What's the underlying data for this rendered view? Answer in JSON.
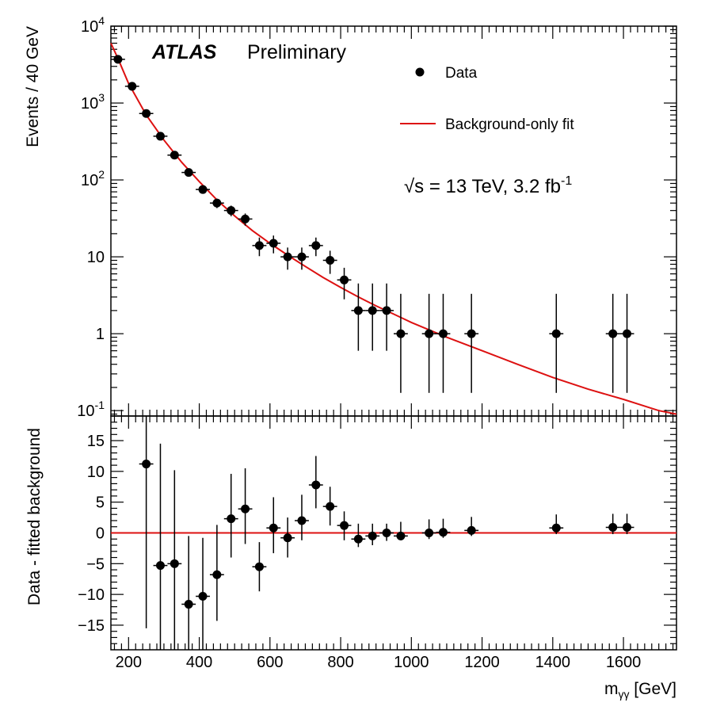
{
  "chart_data": [
    {
      "type": "scatter",
      "panel": "top",
      "scale": "log",
      "ylabel": "Events / 40 GeV",
      "ylim": [
        0.085,
        10000
      ],
      "xlim": [
        150,
        1750
      ],
      "y_tick_labels": [
        {
          "value": 10000,
          "base": "10",
          "exp": "4"
        },
        {
          "value": 1000,
          "base": "10",
          "exp": "3"
        },
        {
          "value": 100,
          "base": "10",
          "exp": "2"
        },
        {
          "value": 10,
          "base": "10",
          "exp": ""
        },
        {
          "value": 1,
          "base": "1",
          "exp": ""
        },
        {
          "value": 0.1,
          "base": "10",
          "exp": "-1"
        }
      ],
      "atlas_label": "ATLAS",
      "atlas_sublabel": "Preliminary",
      "energy_label": {
        "prefix": "√s = 13 TeV, 3.2 fb",
        "sup": "-1"
      },
      "legend": {
        "placement": "top-right",
        "data_label": "Data",
        "fit_label": "Background-only fit"
      },
      "fit_color": "#dd1111",
      "fit_curve_x": [
        150,
        170,
        200,
        250,
        300,
        350,
        400,
        450,
        500,
        550,
        600,
        650,
        700,
        750,
        800,
        850,
        900,
        950,
        1000,
        1100,
        1200,
        1300,
        1400,
        1500,
        1600,
        1700,
        1750
      ],
      "fit_curve_y": [
        6000,
        3800,
        1800,
        700,
        330,
        170,
        95,
        55,
        34,
        22,
        15,
        10.5,
        7.5,
        5.4,
        4.0,
        3.0,
        2.3,
        1.8,
        1.4,
        0.9,
        0.6,
        0.4,
        0.27,
        0.19,
        0.14,
        0.1,
        0.09
      ],
      "points": [
        {
          "x": 170,
          "y": 3700,
          "ylo": 3640,
          "yhi": 3760
        },
        {
          "x": 210,
          "y": 1650,
          "ylo": 1610,
          "yhi": 1690
        },
        {
          "x": 250,
          "y": 730,
          "ylo": 703,
          "yhi": 757
        },
        {
          "x": 290,
          "y": 370,
          "ylo": 351,
          "yhi": 389
        },
        {
          "x": 330,
          "y": 210,
          "ylo": 196,
          "yhi": 225
        },
        {
          "x": 370,
          "y": 125,
          "ylo": 114,
          "yhi": 136
        },
        {
          "x": 410,
          "y": 75,
          "ylo": 66.4,
          "yhi": 83.7
        },
        {
          "x": 450,
          "y": 50,
          "ylo": 43.0,
          "yhi": 57.1
        },
        {
          "x": 490,
          "y": 40,
          "ylo": 33.7,
          "yhi": 46.3
        },
        {
          "x": 530,
          "y": 31,
          "ylo": 25.4,
          "yhi": 36.6
        },
        {
          "x": 570,
          "y": 14,
          "ylo": 10.2,
          "yhi": 17.8
        },
        {
          "x": 610,
          "y": 15,
          "ylo": 11.1,
          "yhi": 18.9
        },
        {
          "x": 650,
          "y": 10,
          "ylo": 6.8,
          "yhi": 13.2
        },
        {
          "x": 690,
          "y": 10,
          "ylo": 6.8,
          "yhi": 13.2
        },
        {
          "x": 730,
          "y": 14,
          "ylo": 10.2,
          "yhi": 17.8
        },
        {
          "x": 770,
          "y": 9,
          "ylo": 6.0,
          "yhi": 12.0
        },
        {
          "x": 810,
          "y": 5,
          "ylo": 2.8,
          "yhi": 7.2
        },
        {
          "x": 850,
          "y": 2,
          "ylo": 0.6,
          "yhi": 4.5
        },
        {
          "x": 890,
          "y": 2,
          "ylo": 0.6,
          "yhi": 4.5
        },
        {
          "x": 930,
          "y": 2,
          "ylo": 0.6,
          "yhi": 4.5
        },
        {
          "x": 970,
          "y": 1,
          "ylo": 0.17,
          "yhi": 3.3
        },
        {
          "x": 1050,
          "y": 1,
          "ylo": 0.17,
          "yhi": 3.3
        },
        {
          "x": 1090,
          "y": 1,
          "ylo": 0.17,
          "yhi": 3.3
        },
        {
          "x": 1170,
          "y": 1,
          "ylo": 0.17,
          "yhi": 3.3
        },
        {
          "x": 1410,
          "y": 1,
          "ylo": 0.17,
          "yhi": 3.3
        },
        {
          "x": 1570,
          "y": 1,
          "ylo": 0.17,
          "yhi": 3.3
        },
        {
          "x": 1610,
          "y": 1,
          "ylo": 0.17,
          "yhi": 3.3
        }
      ]
    },
    {
      "type": "scatter",
      "panel": "bottom",
      "ylabel": "Data - fitted background",
      "xlabel": {
        "base": "m",
        "sub": "γγ",
        "unit": " [GeV]"
      },
      "ylim": [
        -19,
        19
      ],
      "xlim": [
        150,
        1750
      ],
      "y_ticks": [
        15,
        10,
        5,
        0,
        -5,
        -10,
        -15
      ],
      "x_ticks": [
        200,
        400,
        600,
        800,
        1000,
        1200,
        1400,
        1600
      ],
      "zero_line_color": "#dd1111",
      "points": [
        {
          "x": 250,
          "y": 11.2,
          "ylo": -15.5,
          "yhi": 19
        },
        {
          "x": 290,
          "y": -5.3,
          "ylo": -19,
          "yhi": 14.5
        },
        {
          "x": 330,
          "y": -5.0,
          "ylo": -19,
          "yhi": 10.2
        },
        {
          "x": 370,
          "y": -11.6,
          "ylo": -19,
          "yhi": -0.5
        },
        {
          "x": 410,
          "y": -10.3,
          "ylo": -19,
          "yhi": -0.8
        },
        {
          "x": 450,
          "y": -6.8,
          "ylo": -14.3,
          "yhi": 1.3
        },
        {
          "x": 490,
          "y": 2.3,
          "ylo": -4.0,
          "yhi": 9.6
        },
        {
          "x": 530,
          "y": 3.9,
          "ylo": -1.8,
          "yhi": 10.5
        },
        {
          "x": 570,
          "y": -5.5,
          "ylo": -9.5,
          "yhi": -1.5
        },
        {
          "x": 610,
          "y": 0.8,
          "ylo": -3.3,
          "yhi": 5.8
        },
        {
          "x": 650,
          "y": -0.8,
          "ylo": -4.0,
          "yhi": 2.5
        },
        {
          "x": 690,
          "y": 2.0,
          "ylo": -1.2,
          "yhi": 6.2
        },
        {
          "x": 730,
          "y": 7.8,
          "ylo": 4.0,
          "yhi": 12.5
        },
        {
          "x": 770,
          "y": 4.3,
          "ylo": 1.2,
          "yhi": 7.5
        },
        {
          "x": 810,
          "y": 1.2,
          "ylo": -1.2,
          "yhi": 3.5
        },
        {
          "x": 850,
          "y": -1.0,
          "ylo": -2.3,
          "yhi": 1.5
        },
        {
          "x": 890,
          "y": -0.5,
          "ylo": -2.0,
          "yhi": 1.5
        },
        {
          "x": 930,
          "y": 0.0,
          "ylo": -1.3,
          "yhi": 1.5
        },
        {
          "x": 970,
          "y": -0.5,
          "ylo": -1.2,
          "yhi": 1.8
        },
        {
          "x": 1050,
          "y": 0.0,
          "ylo": -1.0,
          "yhi": 2.2
        },
        {
          "x": 1090,
          "y": 0.1,
          "ylo": -0.8,
          "yhi": 2.3
        },
        {
          "x": 1170,
          "y": 0.4,
          "ylo": -0.5,
          "yhi": 2.6
        },
        {
          "x": 1410,
          "y": 0.8,
          "ylo": -0.2,
          "yhi": 3.0
        },
        {
          "x": 1570,
          "y": 0.9,
          "ylo": -0.2,
          "yhi": 3.1
        },
        {
          "x": 1610,
          "y": 0.9,
          "ylo": -0.2,
          "yhi": 3.1
        }
      ]
    }
  ]
}
